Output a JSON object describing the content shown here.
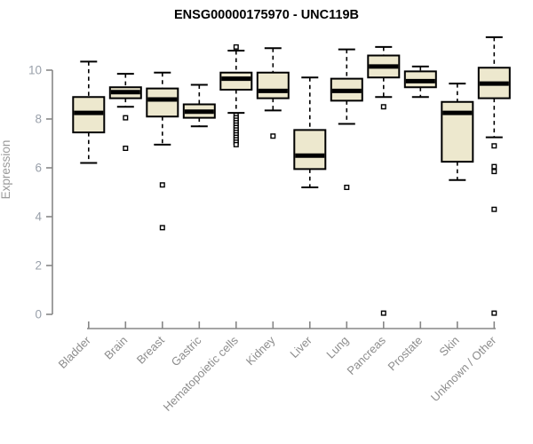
{
  "title": "ENSG00000175970 - UNC119B",
  "y_axis": {
    "label": "Expression",
    "ticks": [
      0,
      2,
      4,
      6,
      8,
      10
    ]
  },
  "colors": {
    "box_fill": "#EDE8CE",
    "box_border": "#000000",
    "axis_line": "#878787",
    "y_tick_label": "#99A0AA",
    "x_tick_label": "#8D8D8D",
    "y_axis_title": "#9A9A9A",
    "title_color": "#000000"
  },
  "chart_data": {
    "type": "boxplot",
    "title": "ENSG00000175970 - UNC119B",
    "xlabel": "",
    "ylabel": "Expression",
    "ylim": [
      0,
      11.6
    ],
    "grid": false,
    "categories": [
      "Bladder",
      "Brain",
      "Breast",
      "Gastric",
      "Hematopoietic cells",
      "Kidney",
      "Liver",
      "Lung",
      "Pancreas",
      "Prostate",
      "Skin",
      "Unknown / Other"
    ],
    "series": [
      {
        "name": "Bladder",
        "whisker_low": 6.2,
        "q1": 7.45,
        "median": 8.25,
        "q3": 8.9,
        "whisker_high": 10.35,
        "outliers": []
      },
      {
        "name": "Brain",
        "whisker_low": 8.5,
        "q1": 8.85,
        "median": 9.1,
        "q3": 9.3,
        "whisker_high": 9.85,
        "outliers": [
          8.05,
          6.8
        ]
      },
      {
        "name": "Breast",
        "whisker_low": 6.95,
        "q1": 8.1,
        "median": 8.8,
        "q3": 9.25,
        "whisker_high": 9.9,
        "outliers": [
          5.3,
          3.55
        ]
      },
      {
        "name": "Gastric",
        "whisker_low": 7.7,
        "q1": 8.05,
        "median": 8.3,
        "q3": 8.6,
        "whisker_high": 9.4,
        "outliers": []
      },
      {
        "name": "Hematopoietic cells",
        "whisker_low": 8.25,
        "q1": 9.2,
        "median": 9.65,
        "q3": 9.9,
        "whisker_high": 10.8,
        "outliers": [
          10.95,
          8.15,
          8.05,
          7.95,
          7.85,
          7.75,
          7.65,
          7.55,
          7.45,
          7.35,
          7.25,
          7.15,
          7.05,
          6.95
        ]
      },
      {
        "name": "Kidney",
        "whisker_low": 8.35,
        "q1": 8.85,
        "median": 9.15,
        "q3": 9.9,
        "whisker_high": 10.9,
        "outliers": [
          7.3
        ]
      },
      {
        "name": "Liver",
        "whisker_low": 5.2,
        "q1": 5.95,
        "median": 6.5,
        "q3": 7.55,
        "whisker_high": 9.7,
        "outliers": []
      },
      {
        "name": "Lung",
        "whisker_low": 7.8,
        "q1": 8.75,
        "median": 9.15,
        "q3": 9.65,
        "whisker_high": 10.85,
        "outliers": [
          5.2
        ]
      },
      {
        "name": "Pancreas",
        "whisker_low": 8.9,
        "q1": 9.7,
        "median": 10.15,
        "q3": 10.6,
        "whisker_high": 10.95,
        "outliers": [
          8.5,
          0.05
        ]
      },
      {
        "name": "Prostate",
        "whisker_low": 8.9,
        "q1": 9.3,
        "median": 9.55,
        "q3": 9.95,
        "whisker_high": 10.15,
        "outliers": []
      },
      {
        "name": "Skin",
        "whisker_low": 5.5,
        "q1": 6.25,
        "median": 8.25,
        "q3": 8.7,
        "whisker_high": 9.45,
        "outliers": []
      },
      {
        "name": "Unknown / Other",
        "whisker_low": 7.25,
        "q1": 8.85,
        "median": 9.45,
        "q3": 10.1,
        "whisker_high": 11.35,
        "outliers": [
          6.9,
          6.05,
          5.85,
          4.3,
          0.05
        ]
      }
    ]
  }
}
